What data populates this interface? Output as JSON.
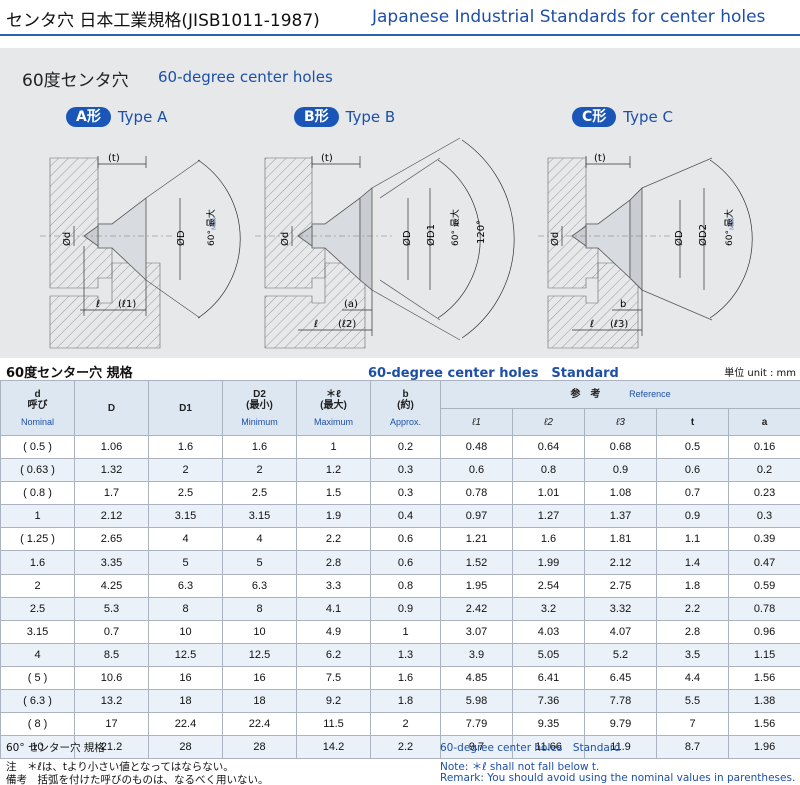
{
  "header": {
    "title_jp": "センタ穴 日本工業規格(JISB1011-1987)",
    "title_en": "Japanese Industrial Standards for center holes"
  },
  "diagram": {
    "title_jp": "60度センタ穴",
    "title_en": "60-degree center holes",
    "types": [
      {
        "pill": "A形",
        "name": "Type A"
      },
      {
        "pill": "B形",
        "name": "Type B"
      },
      {
        "pill": "C形",
        "name": "Type C"
      }
    ],
    "labels": {
      "t": "(t)",
      "d": "Ød",
      "D": "ØD",
      "D1": "ØD1",
      "D2": "ØD2",
      "l": "ℓ",
      "l1": "(ℓ1)",
      "l2": "(ℓ2)",
      "l3": "(ℓ3)",
      "a": "(a)",
      "b": "b",
      "angle60": "60° 最大",
      "max": "Max",
      "angle120": "120°"
    }
  },
  "table": {
    "title_jp": "60度センター穴 規格",
    "title_en": "60-degree center holes　Standard",
    "unit": "単位 unit : mm",
    "head": {
      "d_sym": "d",
      "d_jp": "呼び",
      "d_en": "Nominal",
      "D": "D",
      "D1": "D1",
      "D2": "D2",
      "D2_jp": "(最小)",
      "D2_en": "Minimum",
      "l": "＊ℓ",
      "l_jp": "(最大)",
      "l_en": "Maximum",
      "b": "b",
      "b_jp": "(約)",
      "b_en": "Approx.",
      "ref_jp": "参　考",
      "ref_en": "Reference",
      "l1": "ℓ1",
      "l2": "ℓ2",
      "l3": "ℓ3",
      "t": "t",
      "a": "a"
    },
    "rows": [
      [
        "( 0.5 )",
        "1.06",
        "1.6",
        "1.6",
        "1",
        "0.2",
        "0.48",
        "0.64",
        "0.68",
        "0.5",
        "0.16"
      ],
      [
        "( 0.63 )",
        "1.32",
        "2",
        "2",
        "1.2",
        "0.3",
        "0.6",
        "0.8",
        "0.9",
        "0.6",
        "0.2"
      ],
      [
        "( 0.8 )",
        "1.7",
        "2.5",
        "2.5",
        "1.5",
        "0.3",
        "0.78",
        "1.01",
        "1.08",
        "0.7",
        "0.23"
      ],
      [
        "1",
        "2.12",
        "3.15",
        "3.15",
        "1.9",
        "0.4",
        "0.97",
        "1.27",
        "1.37",
        "0.9",
        "0.3"
      ],
      [
        "( 1.25 )",
        "2.65",
        "4",
        "4",
        "2.2",
        "0.6",
        "1.21",
        "1.6",
        "1.81",
        "1.1",
        "0.39"
      ],
      [
        "1.6",
        "3.35",
        "5",
        "5",
        "2.8",
        "0.6",
        "1.52",
        "1.99",
        "2.12",
        "1.4",
        "0.47"
      ],
      [
        "2",
        "4.25",
        "6.3",
        "6.3",
        "3.3",
        "0.8",
        "1.95",
        "2.54",
        "2.75",
        "1.8",
        "0.59"
      ],
      [
        "2.5",
        "5.3",
        "8",
        "8",
        "4.1",
        "0.9",
        "2.42",
        "3.2",
        "3.32",
        "2.2",
        "0.78"
      ],
      [
        "3.15",
        "0.7",
        "10",
        "10",
        "4.9",
        "1",
        "3.07",
        "4.03",
        "4.07",
        "2.8",
        "0.96"
      ],
      [
        "4",
        "8.5",
        "12.5",
        "12.5",
        "6.2",
        "1.3",
        "3.9",
        "5.05",
        "5.2",
        "3.5",
        "1.15"
      ],
      [
        "( 5 )",
        "10.6",
        "16",
        "16",
        "7.5",
        "1.6",
        "4.85",
        "6.41",
        "6.45",
        "4.4",
        "1.56"
      ],
      [
        "( 6.3 )",
        "13.2",
        "18",
        "18",
        "9.2",
        "1.8",
        "5.98",
        "7.36",
        "7.78",
        "5.5",
        "1.38"
      ],
      [
        "( 8 )",
        "17",
        "22.4",
        "22.4",
        "11.5",
        "2",
        "7.79",
        "9.35",
        "9.79",
        "7",
        "1.56"
      ],
      [
        "10",
        "21.2",
        "28",
        "28",
        "14.2",
        "2.2",
        "9.7",
        "11.66",
        "11.9",
        "8.7",
        "1.96"
      ]
    ]
  },
  "footer": {
    "title_jp": "60° センター穴 規格",
    "note_jp": "注　＊ℓは、tより小さい値となってはならない。",
    "remark_jp": "備考　括弧を付けた呼びのものは、なるべく用いない。",
    "title_en": "60-degree center holes　Standard",
    "note_en": "Note: ＊ℓ shall not fall below t.",
    "remark_en": "Remark: You should avoid using the nominal values in parentheses."
  }
}
